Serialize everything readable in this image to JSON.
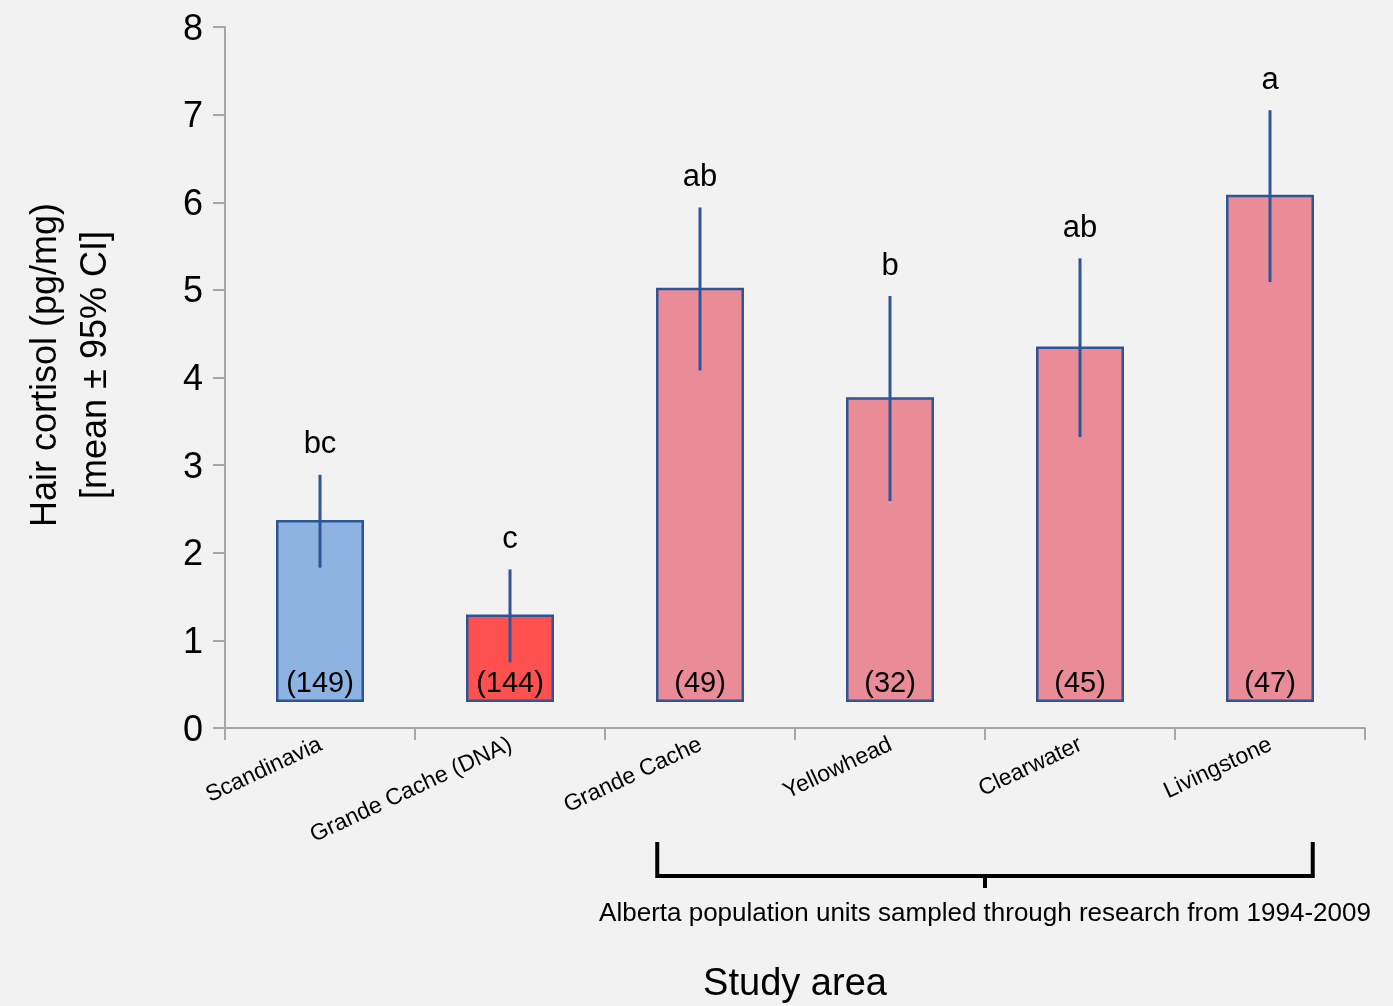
{
  "chart_data": {
    "type": "bar",
    "xlabel": "Study area",
    "ylabel": "Hair cortisol (pg/mg)\n[mean ± 95% CI]",
    "categories": [
      "Scandinavia",
      "Grande Cache (DNA)",
      "Grande Cache",
      "Yellowhead",
      "Clearwater",
      "Livingstone"
    ],
    "base": [
      0.31,
      0.31,
      0.31,
      0.31,
      0.31,
      0.31
    ],
    "values": [
      2.05,
      0.97,
      4.7,
      3.45,
      4.03,
      5.76
    ],
    "errors": [
      0.53,
      0.53,
      0.93,
      1.17,
      1.02,
      0.98
    ],
    "colors": [
      "#8db3e2",
      "#ff5050",
      "#e98c98",
      "#e98c98",
      "#e98c98",
      "#e98c98"
    ],
    "ylim": [
      0,
      8
    ],
    "yticks": [
      0,
      1,
      2,
      3,
      4,
      5,
      6,
      7,
      8
    ],
    "grid": false,
    "annotations": [
      "bc",
      "c",
      "ab",
      "b",
      "ab",
      "a",
      "(149)",
      "(144)",
      "(49)",
      "(32)",
      "(45)",
      "(47)",
      "Alberta population units sampled through research from 1994-2009"
    ]
  }
}
